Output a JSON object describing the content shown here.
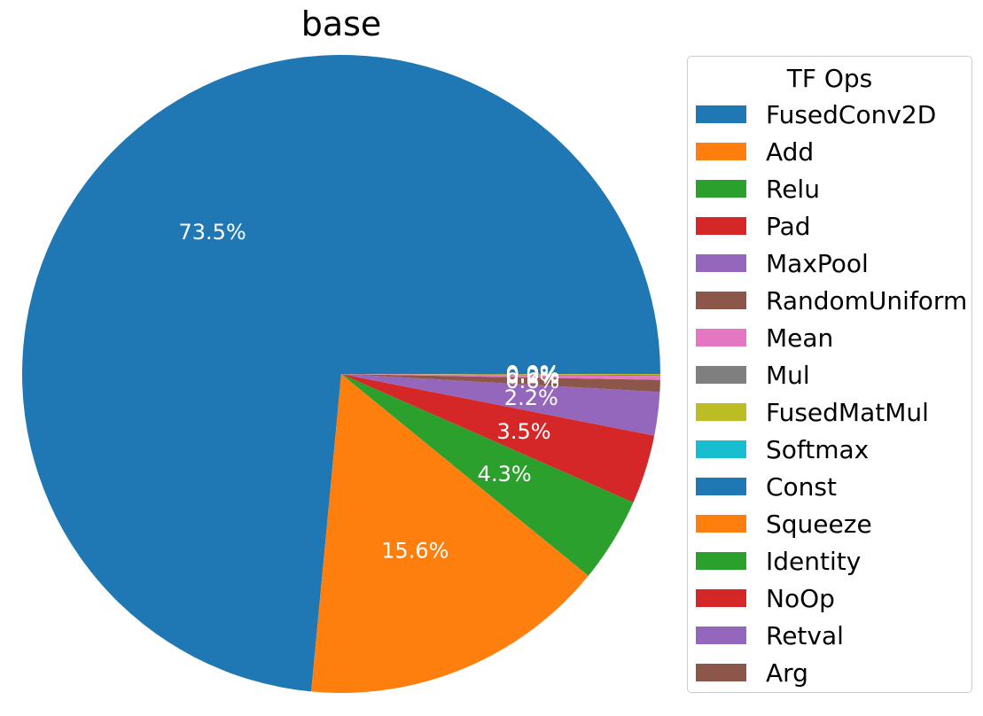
{
  "chart_data": {
    "type": "pie",
    "title": "base",
    "legend_title": "TF Ops",
    "legend_position": "right",
    "labels": [
      "FusedConv2D",
      "Add",
      "Relu",
      "Pad",
      "MaxPool",
      "RandomUniform",
      "Mean",
      "Mul",
      "FusedMatMul",
      "Softmax",
      "Const",
      "Squeeze",
      "Identity",
      "NoOp",
      "Retval",
      "Arg"
    ],
    "values": [
      73.5,
      15.6,
      4.3,
      3.5,
      2.2,
      0.6,
      0.2,
      0.05,
      0.05,
      0.0,
      0.0,
      0.0,
      0.0,
      0.0,
      0.0,
      0.0
    ],
    "colors": [
      "#1f77b4",
      "#ff7f0e",
      "#2ca02c",
      "#d62728",
      "#9467bd",
      "#8c564b",
      "#e377c2",
      "#7f7f7f",
      "#bcbd22",
      "#17becf",
      "#1f77b4",
      "#ff7f0e",
      "#2ca02c",
      "#d62728",
      "#9467bd",
      "#8c564b"
    ],
    "autopct_labels": [
      "73.5%",
      "15.6%",
      "4.3%",
      "3.5%",
      "2.2%",
      "0.6%",
      "0.2%",
      "0.0%",
      "0.0%",
      "0.0%",
      "0.0%",
      "0.0%",
      "0.0%",
      "0.0%",
      "0.0%",
      "0.0%"
    ],
    "start_angle": 0,
    "direction": "counterclockwise"
  }
}
